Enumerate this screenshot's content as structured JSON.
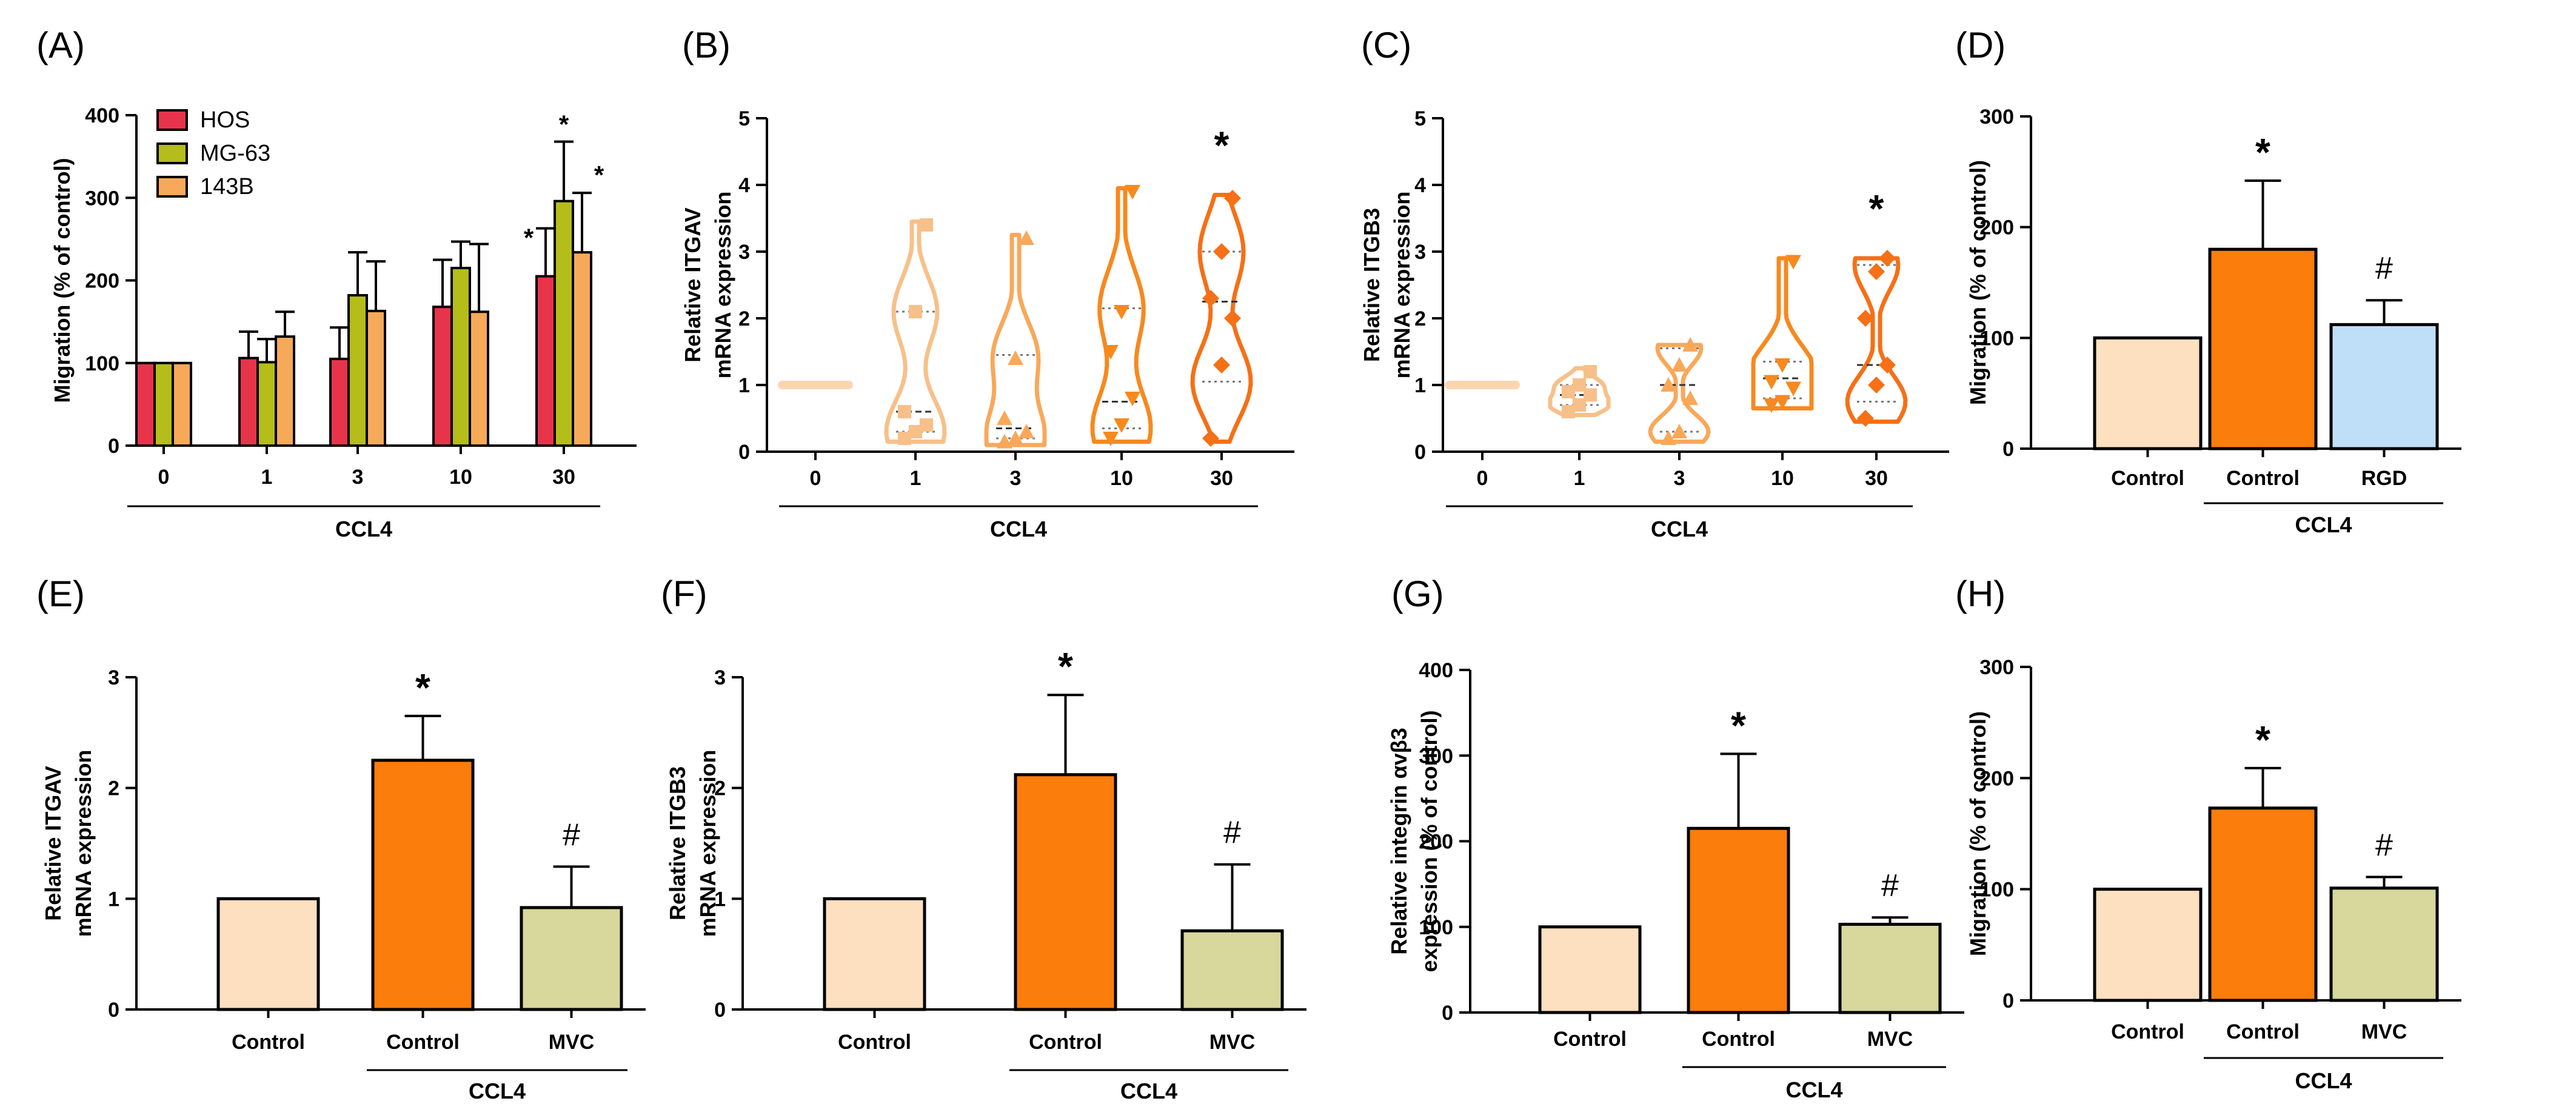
{
  "chart_data": [
    {
      "panel": "(A)",
      "type": "bar",
      "categories": [
        "0",
        "1",
        "3",
        "10",
        "30"
      ],
      "group_label": "CCL4",
      "ylabel": "Migration (% of control)",
      "ylim": [
        0,
        400
      ],
      "yticks": [
        "0",
        "100",
        "200",
        "300",
        "400"
      ],
      "series": [
        {
          "name": "HOS",
          "color": "#e8344a",
          "values": [
            100,
            106,
            105,
            168,
            205
          ],
          "errors": [
            0,
            32,
            38,
            57,
            58
          ],
          "sig": [
            "",
            "",
            "",
            "",
            "*"
          ]
        },
        {
          "name": "MG-63",
          "color": "#b5bd1a",
          "values": [
            100,
            101,
            182,
            215,
            296
          ],
          "errors": [
            0,
            28,
            52,
            32,
            72
          ],
          "sig": [
            "",
            "",
            "",
            "",
            "*"
          ]
        },
        {
          "name": "143B",
          "color": "#f7a95a",
          "values": [
            100,
            132,
            163,
            162,
            234
          ],
          "errors": [
            0,
            30,
            60,
            82,
            72
          ],
          "sig": [
            "",
            "",
            "",
            "",
            "*"
          ]
        }
      ]
    },
    {
      "panel": "(B)",
      "type": "violin",
      "categories": [
        "0",
        "1",
        "3",
        "10",
        "30"
      ],
      "group_label": "CCL4",
      "ylabel": [
        "Relative ITGAV",
        "mRNA expression"
      ],
      "ylim": [
        0,
        5
      ],
      "yticks": [
        "0",
        "1",
        "2",
        "3",
        "4",
        "5"
      ],
      "colors": [
        "#fcd5b0",
        "#f7c08a",
        "#f9a85a",
        "#f7891e",
        "#f57016"
      ],
      "groups": [
        {
          "points": [
            1,
            1,
            1,
            1,
            1,
            1
          ],
          "min": 1,
          "max": 1,
          "median": 1,
          "q1": 1,
          "q3": 1,
          "marker": "circle",
          "sig": ""
        },
        {
          "points": [
            0.2,
            0.3,
            0.4,
            0.6,
            2.1,
            3.4
          ],
          "min": 0.15,
          "max": 3.45,
          "median": 0.6,
          "q1": 0.3,
          "q3": 2.1,
          "marker": "square",
          "sig": ""
        },
        {
          "points": [
            0.15,
            0.2,
            0.3,
            0.5,
            1.4,
            3.2
          ],
          "min": 0.1,
          "max": 3.25,
          "median": 0.35,
          "q1": 0.2,
          "q3": 1.45,
          "marker": "triangle",
          "sig": ""
        },
        {
          "points": [
            0.2,
            0.4,
            0.8,
            1.5,
            2.1,
            3.9
          ],
          "min": 0.15,
          "max": 3.95,
          "median": 0.75,
          "q1": 0.35,
          "q3": 2.15,
          "marker": "triangle-down",
          "sig": ""
        },
        {
          "points": [
            0.2,
            1.3,
            2.0,
            2.3,
            3.0,
            3.8
          ],
          "min": 0.15,
          "max": 3.85,
          "median": 2.25,
          "q1": 1.05,
          "q3": 3.0,
          "marker": "diamond",
          "sig": "*"
        }
      ]
    },
    {
      "panel": "(C)",
      "type": "violin",
      "categories": [
        "0",
        "1",
        "3",
        "10",
        "30"
      ],
      "group_label": "CCL4",
      "ylabel": [
        "Relative ITGB3",
        "mRNA expression"
      ],
      "ylim": [
        0,
        5
      ],
      "yticks": [
        "0",
        "1",
        "2",
        "3",
        "4",
        "5"
      ],
      "colors": [
        "#fcd5b0",
        "#f7c08a",
        "#f9a85a",
        "#f7891e",
        "#f57016"
      ],
      "groups": [
        {
          "points": [
            1,
            1,
            1,
            1,
            1,
            1
          ],
          "min": 1,
          "max": 1,
          "median": 1,
          "q1": 1,
          "q3": 1,
          "marker": "circle",
          "sig": ""
        },
        {
          "points": [
            0.6,
            0.7,
            0.85,
            0.9,
            1.0,
            1.2
          ],
          "min": 0.55,
          "max": 1.25,
          "median": 0.85,
          "q1": 0.7,
          "q3": 1.0,
          "marker": "square",
          "sig": ""
        },
        {
          "points": [
            0.2,
            0.3,
            0.8,
            1.0,
            1.3,
            1.6
          ],
          "min": 0.15,
          "max": 1.6,
          "median": 1.0,
          "q1": 0.3,
          "q3": 1.55,
          "marker": "triangle",
          "sig": ""
        },
        {
          "points": [
            0.7,
            0.75,
            0.95,
            1.05,
            1.3,
            2.85
          ],
          "min": 0.65,
          "max": 2.9,
          "median": 1.1,
          "q1": 0.8,
          "q3": 1.35,
          "marker": "triangle-down",
          "sig": ""
        },
        {
          "points": [
            0.5,
            1.0,
            1.3,
            2.0,
            2.7,
            2.9
          ],
          "min": 0.45,
          "max": 2.9,
          "median": 1.3,
          "q1": 0.75,
          "q3": 2.8,
          "marker": "diamond",
          "sig": "*"
        }
      ]
    },
    {
      "panel": "(D)",
      "type": "bar",
      "categories": [
        "Control",
        "Control",
        "RGD"
      ],
      "group_label": "CCL4",
      "group_span": [
        1,
        2
      ],
      "ylabel": "Migration (% of control)",
      "ylim": [
        0,
        300
      ],
      "yticks": [
        "0",
        "100",
        "200",
        "300"
      ],
      "values": [
        100,
        180,
        112
      ],
      "errors": [
        0,
        62,
        22
      ],
      "colors": [
        "#fde0c0",
        "#fb7d0b",
        "#bfdff8"
      ],
      "sig": [
        "",
        "*",
        "#"
      ]
    },
    {
      "panel": "(E)",
      "type": "bar",
      "categories": [
        "Control",
        "Control",
        "MVC"
      ],
      "group_label": "CCL4",
      "group_span": [
        1,
        2
      ],
      "ylabel": [
        "Relative ITGAV",
        "mRNA expression"
      ],
      "ylim": [
        0,
        3
      ],
      "yticks": [
        "0",
        "1",
        "2",
        "3"
      ],
      "values": [
        1.0,
        2.25,
        0.92
      ],
      "errors": [
        0,
        0.4,
        0.37
      ],
      "colors": [
        "#fde0c0",
        "#fb7d0b",
        "#d8d79c"
      ],
      "sig": [
        "",
        "*",
        "#"
      ]
    },
    {
      "panel": "(F)",
      "type": "bar",
      "categories": [
        "Control",
        "Control",
        "MVC"
      ],
      "group_label": "CCL4",
      "group_span": [
        1,
        2
      ],
      "ylabel": [
        "Relative ITGB3",
        "mRNA expression"
      ],
      "ylim": [
        0,
        3
      ],
      "yticks": [
        "0",
        "1",
        "2",
        "3"
      ],
      "values": [
        1.0,
        2.12,
        0.71
      ],
      "errors": [
        0,
        0.72,
        0.6
      ],
      "colors": [
        "#fde0c0",
        "#fb7d0b",
        "#d8d79c"
      ],
      "sig": [
        "",
        "*",
        "#"
      ]
    },
    {
      "panel": "(G)",
      "type": "bar",
      "categories": [
        "Control",
        "Control",
        "MVC"
      ],
      "group_label": "CCL4",
      "group_span": [
        1,
        2
      ],
      "ylabel": [
        "Relative  integrin αvβ3",
        "expression (% of control)"
      ],
      "ylim": [
        0,
        400
      ],
      "yticks": [
        "0",
        "100",
        "200",
        "300",
        "400"
      ],
      "values": [
        100,
        215,
        103
      ],
      "errors": [
        0,
        87,
        8
      ],
      "colors": [
        "#fde0c0",
        "#fb7d0b",
        "#d8d79c"
      ],
      "sig": [
        "",
        "*",
        "#"
      ]
    },
    {
      "panel": "(H)",
      "type": "bar",
      "categories": [
        "Control",
        "Control",
        "MVC"
      ],
      "group_label": "CCL4",
      "group_span": [
        1,
        2
      ],
      "ylabel": "Migration (% of control)",
      "ylim": [
        0,
        300
      ],
      "yticks": [
        "0",
        "100",
        "200",
        "300"
      ],
      "values": [
        100,
        173,
        101
      ],
      "errors": [
        0,
        36,
        10
      ],
      "colors": [
        "#fde0c0",
        "#fb7d0b",
        "#d8d79c"
      ],
      "sig": [
        "",
        "*",
        "#"
      ]
    }
  ]
}
